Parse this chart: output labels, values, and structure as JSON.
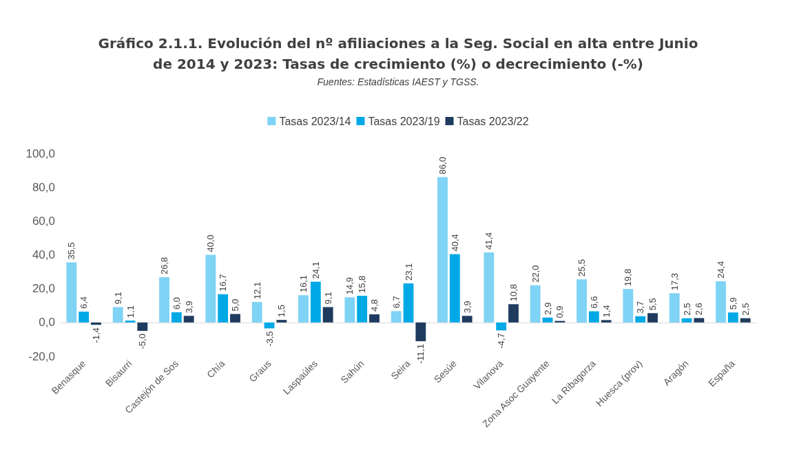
{
  "chart_data": {
    "type": "bar",
    "title": "Gráfico 2.1.1. Evolución del nº afiliaciones a la Seg. Social en alta entre Junio\nde 2014 y 2023: Tasas de crecimiento (%) o decrecimiento (-%)",
    "subtitle": "Fuentes: Estadísticas IAEST y TGSS.",
    "categories": [
      "Benasque",
      "Bisaurri",
      "Castejón de Sos",
      "Chía",
      "Graus",
      "Laspaúles",
      "Sahún",
      "Seira",
      "Sesúe",
      "Vilanova",
      "Zona Asoc Guayente",
      "La Ribagorza",
      "Huesca (prov)",
      "Aragón",
      "España"
    ],
    "series": [
      {
        "name": "Tasas 2023/14",
        "color": "#7fd3f5",
        "values": [
          35.5,
          9.1,
          26.8,
          40.0,
          12.1,
          16.1,
          14.9,
          6.7,
          86.0,
          41.4,
          22.0,
          25.5,
          19.8,
          17.3,
          24.4
        ],
        "value_labels": [
          "35,5",
          "9,1",
          "26,8",
          "40,0",
          "12,1",
          "16,1",
          "14,9",
          "6,7",
          "86,0",
          "41,4",
          "22,0",
          "25,5",
          "19,8",
          "17,3",
          "24,4"
        ]
      },
      {
        "name": "Tasas 2023/19",
        "color": "#00a9e6",
        "values": [
          6.4,
          1.1,
          6.0,
          16.7,
          -3.5,
          24.1,
          15.8,
          23.1,
          40.4,
          -4.7,
          2.9,
          6.6,
          3.7,
          2.5,
          5.9
        ],
        "value_labels": [
          "6,4",
          "1,1",
          "6,0",
          "16,7",
          "-3,5",
          "24,1",
          "15,8",
          "23,1",
          "40,4",
          "-4,7",
          "2,9",
          "6,6",
          "3,7",
          "2,5",
          "5,9"
        ]
      },
      {
        "name": "Tasas 2023/22",
        "color": "#1f3c5e",
        "values": [
          -1.4,
          -5.0,
          3.9,
          5.0,
          1.5,
          9.1,
          4.8,
          -11.1,
          3.9,
          10.8,
          0.9,
          1.4,
          5.5,
          2.6,
          2.5
        ],
        "value_labels": [
          "-1,4",
          "-5,0",
          "3,9",
          "5,0",
          "1,5",
          "9,1",
          "4,8",
          "-11,1",
          "3,9",
          "10,8",
          "0,9",
          "1,4",
          "5,5",
          "2,6",
          "2,5"
        ]
      }
    ],
    "ylim": [
      -20,
      100
    ],
    "yticks": [
      {
        "value": -20,
        "label": "-20,0"
      },
      {
        "value": 0,
        "label": "0,0"
      },
      {
        "value": 20,
        "label": "20,0"
      },
      {
        "value": 40,
        "label": "40,0"
      },
      {
        "value": 60,
        "label": "60,0"
      },
      {
        "value": 80,
        "label": "80,0"
      },
      {
        "value": 100,
        "label": "100,0"
      }
    ],
    "legend": "top"
  }
}
